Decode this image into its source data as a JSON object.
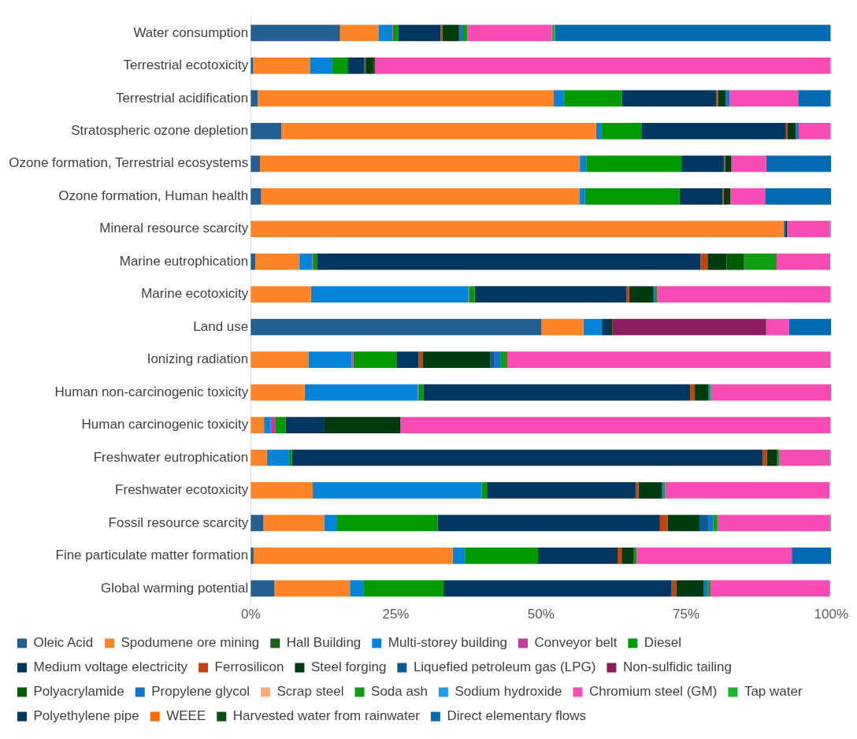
{
  "chart_data": {
    "type": "bar",
    "orientation": "horizontal",
    "stacked": true,
    "grid": false,
    "legend": "bottom",
    "categories": [
      "Water consumption",
      "Terrestrial ecotoxicity",
      "Terrestrial acidification",
      "Stratospheric ozone depletion",
      "Ozone formation, Terrestrial ecosystems",
      "Ozone formation, Human health",
      "Mineral resource scarcity",
      "Marine eutrophication",
      "Marine ecotoxicity",
      "Land use",
      "Ionizing radiation",
      "Human non-carcinogenic toxicity",
      "Human carcinogenic toxicity",
      "Freshwater eutrophication",
      "Freshwater ecotoxicity",
      "Fossil resource scarcity",
      "Fine particulate matter formation",
      "Global warming potential"
    ],
    "xlim": [
      0,
      100
    ],
    "xticks": [
      {
        "value": 0,
        "label": "0%"
      },
      {
        "value": 25,
        "label": "25%"
      },
      {
        "value": 50,
        "label": "50%"
      },
      {
        "value": 75,
        "label": "75%"
      },
      {
        "value": 100,
        "label": "100%"
      }
    ],
    "series": [
      {
        "name": "Oleic Acid",
        "color": "#255e91",
        "values": [
          15.4,
          0.4,
          1.2,
          5.3,
          1.6,
          1.8,
          0,
          0.8,
          0,
          50.1,
          0,
          0,
          0,
          0,
          0,
          2.2,
          0.5,
          4.1
        ]
      },
      {
        "name": "Spodumene ore mining",
        "color": "#ff8427",
        "values": [
          6.6,
          9.8,
          51.0,
          54.2,
          55.1,
          54.8,
          91.8,
          7.6,
          10.4,
          7.2,
          10.0,
          9.3,
          2.3,
          2.8,
          10.7,
          10.5,
          34.3,
          13.0
        ]
      },
      {
        "name": "Hall Building",
        "color": "#1e5c1e",
        "values": [
          0,
          0,
          0,
          0,
          0,
          0,
          0,
          0,
          0,
          0,
          0,
          0,
          0,
          0,
          0,
          0,
          0,
          0
        ]
      },
      {
        "name": "Multi-storey building",
        "color": "#0584d8",
        "values": [
          2.4,
          3.9,
          1.8,
          1.0,
          1.1,
          1.0,
          0.3,
          2.2,
          27.1,
          3.2,
          7.4,
          19.5,
          1.1,
          3.8,
          29.1,
          2.2,
          2.1,
          2.4
        ]
      },
      {
        "name": "Conveyor belt",
        "color": "#c43d9e",
        "values": [
          0.1,
          0,
          0,
          0,
          0,
          0,
          0,
          0.1,
          0.2,
          0,
          0.3,
          0.1,
          0.9,
          0,
          null,
          0,
          0,
          0
        ]
      },
      {
        "name": "Diesel",
        "color": "#009900",
        "values": [
          0.9,
          2.7,
          10.0,
          6.8,
          16.4,
          16.3,
          0,
          0.7,
          0.9,
          0,
          7.4,
          0.9,
          1.7,
          0.5,
          0.9,
          17.3,
          12.6,
          13.7
        ]
      },
      {
        "name": "Medium voltage electricity",
        "color": "#003660",
        "values": [
          7.3,
          2.8,
          16.2,
          24.9,
          7.3,
          7.4,
          0,
          66.1,
          26.1,
          1.2,
          3.8,
          45.9,
          6.6,
          81.1,
          25.6,
          38.3,
          13.7,
          39.3
        ]
      },
      {
        "name": "Ferrosilicon",
        "color": "#c0440c",
        "values": [
          0.3,
          0.2,
          0.3,
          0.3,
          0.2,
          0.2,
          0,
          1.2,
          0.5,
          0,
          0.7,
          0.8,
          0,
          0.7,
          0.5,
          1.3,
          0.7,
          0.8
        ]
      },
      {
        "name": "Steel forging",
        "color": "#003b10",
        "values": [
          2.9,
          1.2,
          1.3,
          1.4,
          1.1,
          1.1,
          0.3,
          3.3,
          4.2,
          0.6,
          11.7,
          2.3,
          13.2,
          1.8,
          4.0,
          5.5,
          2.1,
          4.7
        ]
      },
      {
        "name": "Liquefied petroleum gas (LPG)",
        "color": "#0c5a92",
        "values": [
          0,
          0,
          0,
          0,
          0,
          0,
          0,
          0,
          0,
          0,
          0.7,
          0,
          0,
          0,
          0,
          1.6,
          0,
          0
        ]
      },
      {
        "name": "Non-sulfidic tailing",
        "color": "#8b1c5e",
        "values": [
          0,
          0,
          0,
          0,
          0,
          0,
          0,
          0,
          0,
          26.5,
          0,
          0,
          0,
          0,
          0,
          0,
          0,
          0
        ]
      },
      {
        "name": "Polyacrylamide",
        "color": "#005c00",
        "values": [
          0,
          0.4,
          0,
          0,
          0,
          0,
          0,
          3.0,
          0,
          0,
          0,
          0,
          0,
          0,
          0,
          0,
          0,
          0
        ]
      },
      {
        "name": "Propylene glycol",
        "color": "#1276c8",
        "values": [
          0.7,
          0,
          0.7,
          0.5,
          0,
          0,
          0,
          null,
          0.3,
          0,
          1.1,
          0.3,
          0,
          0,
          0.3,
          0.8,
          0,
          0.7
        ]
      },
      {
        "name": "Scrap steel",
        "color": "#ffaa77",
        "values": [
          0,
          0,
          0,
          0,
          0,
          0,
          0,
          0,
          0,
          0,
          0,
          0,
          0,
          0,
          0,
          0,
          0,
          0
        ]
      },
      {
        "name": "Soda ash",
        "color": "#119c11",
        "values": [
          0.7,
          0,
          0,
          0,
          0,
          0,
          0,
          5.6,
          0.3,
          0,
          1.1,
          0.2,
          0,
          0.3,
          0.3,
          0.7,
          0.5,
          0.5
        ]
      },
      {
        "name": "Sodium hydroxide",
        "color": "#1f9ce8",
        "values": [
          0,
          0,
          0,
          0,
          0,
          0,
          0,
          0,
          0,
          0,
          0,
          0,
          0,
          0,
          0,
          0,
          0,
          0
        ]
      },
      {
        "name": "Chromium steel (GM)",
        "color": "#f84bb4",
        "values": [
          14.6,
          78.5,
          11.8,
          5.5,
          6.0,
          6.0,
          7.4,
          9.1,
          29.9,
          3.9,
          55.7,
          20.7,
          74.1,
          8.8,
          28.3,
          19.4,
          26.7,
          20.6
        ]
      },
      {
        "name": "Tap water",
        "color": "#1cb52a",
        "values": [
          0.5,
          0,
          0,
          0,
          0,
          0,
          0,
          0,
          0,
          0,
          0,
          0,
          0,
          0,
          0,
          0,
          0,
          0
        ]
      },
      {
        "name": "Polyethylene pipe",
        "color": "#05395f",
        "values": [
          0,
          0,
          0,
          0,
          0,
          0,
          0,
          0,
          0,
          0,
          0,
          0,
          0,
          0,
          0,
          0,
          0,
          0
        ]
      },
      {
        "name": "WEEE",
        "color": "#ff6a00",
        "values": [
          0,
          0,
          0,
          0,
          0,
          0,
          0,
          0,
          0,
          0,
          0,
          0,
          0,
          0,
          0,
          0,
          0,
          0
        ]
      },
      {
        "name": "Harvested water from rainwater",
        "color": "#0b4c13",
        "values": [
          0,
          0,
          0,
          0,
          0,
          0,
          0,
          0,
          0,
          0,
          null,
          0,
          null,
          0,
          0,
          0.1,
          0,
          0
        ]
      },
      {
        "name": "Direct elementary flows",
        "color": "#006bb1",
        "values": [
          47.5,
          0,
          5.6,
          null,
          11.2,
          11.4,
          0.1,
          0.1,
          0,
          7.3,
          0,
          0,
          0,
          0.1,
          0,
          0,
          6.8,
          0
        ]
      }
    ]
  }
}
